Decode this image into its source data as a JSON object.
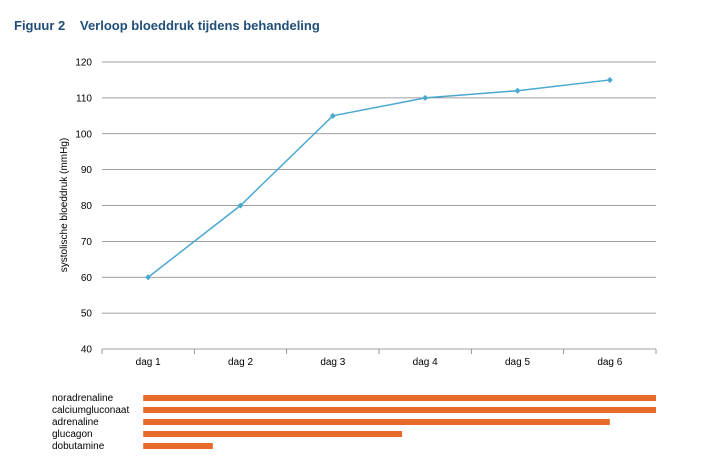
{
  "figure": {
    "number": "Figuur 2",
    "title": "Verloop bloeddruk tijdens behandeling"
  },
  "chart_data": {
    "type": "line",
    "categories": [
      "dag 1",
      "dag 2",
      "dag 3",
      "dag 4",
      "dag 5",
      "dag 6"
    ],
    "series": [
      {
        "values": [
          60,
          80,
          105,
          110,
          112,
          115
        ],
        "color": "#4aa8d0"
      }
    ],
    "ylabel": "systolische bloeddruk (mmHg)",
    "xlabel": "",
    "ylim": [
      40,
      120
    ],
    "yticks": [
      40,
      50,
      60,
      70,
      80,
      90,
      100,
      110,
      120
    ],
    "grid": true
  },
  "treatments": {
    "color": "#e8692a",
    "items": [
      {
        "label": "noradrenaline",
        "start_day": 0.6,
        "end_day": 6.5
      },
      {
        "label": "calciumgluconaat",
        "start_day": 0.6,
        "end_day": 6.5
      },
      {
        "label": "adrenaline",
        "start_day": 0.6,
        "end_day": 6.0
      },
      {
        "label": "glucagon",
        "start_day": 0.6,
        "end_day": 3.75
      },
      {
        "label": "dobutamine",
        "start_day": 0.6,
        "end_day": 1.7
      }
    ]
  }
}
